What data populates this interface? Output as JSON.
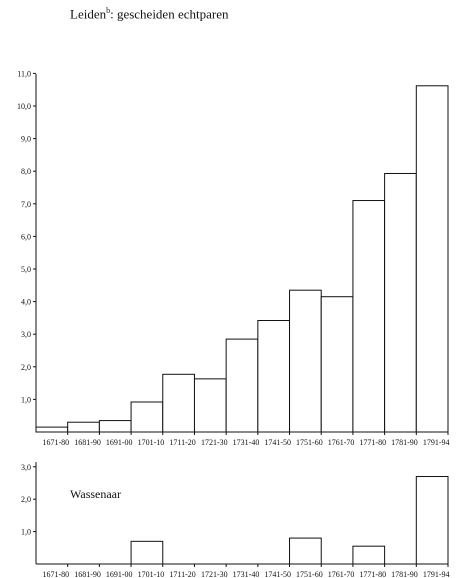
{
  "chart_data": [
    {
      "type": "bar",
      "title": "Leiden",
      "title_superscript": "b",
      "title_suffix": ": gescheiden echtparen",
      "categories": [
        "1671-80",
        "1681-90",
        "1691-00",
        "1701-10",
        "1711-20",
        "1721-30",
        "1731-40",
        "1741-50",
        "1751-60",
        "1761-70",
        "1771-80",
        "1781-90",
        "1791-94"
      ],
      "values": [
        0.15,
        0.3,
        0.35,
        0.92,
        1.77,
        1.63,
        2.85,
        3.42,
        4.35,
        4.15,
        7.1,
        7.93,
        10.62
      ],
      "yticks": [
        "1,0",
        "2,0",
        "3,0",
        "4,0",
        "5,0",
        "6,0",
        "7,0",
        "8,0",
        "9,0",
        "10,0",
        "11,0"
      ],
      "ylim": [
        0,
        11
      ],
      "grid": false
    },
    {
      "type": "bar",
      "title": "Wassenaar",
      "categories": [
        "1671-80",
        "1681-90",
        "1691-00",
        "1701-10",
        "1711-20",
        "1721-30",
        "1731-40",
        "1741-50",
        "1751-60",
        "1761-70",
        "1771-80",
        "1781-90",
        "1791-94"
      ],
      "values": [
        0,
        0,
        0,
        0.7,
        0,
        0,
        0,
        0,
        0.8,
        0,
        0.55,
        0,
        2.7
      ],
      "yticks": [
        "1,0",
        "2,0",
        "3,0"
      ],
      "ylim": [
        0,
        3
      ],
      "grid": false
    }
  ]
}
